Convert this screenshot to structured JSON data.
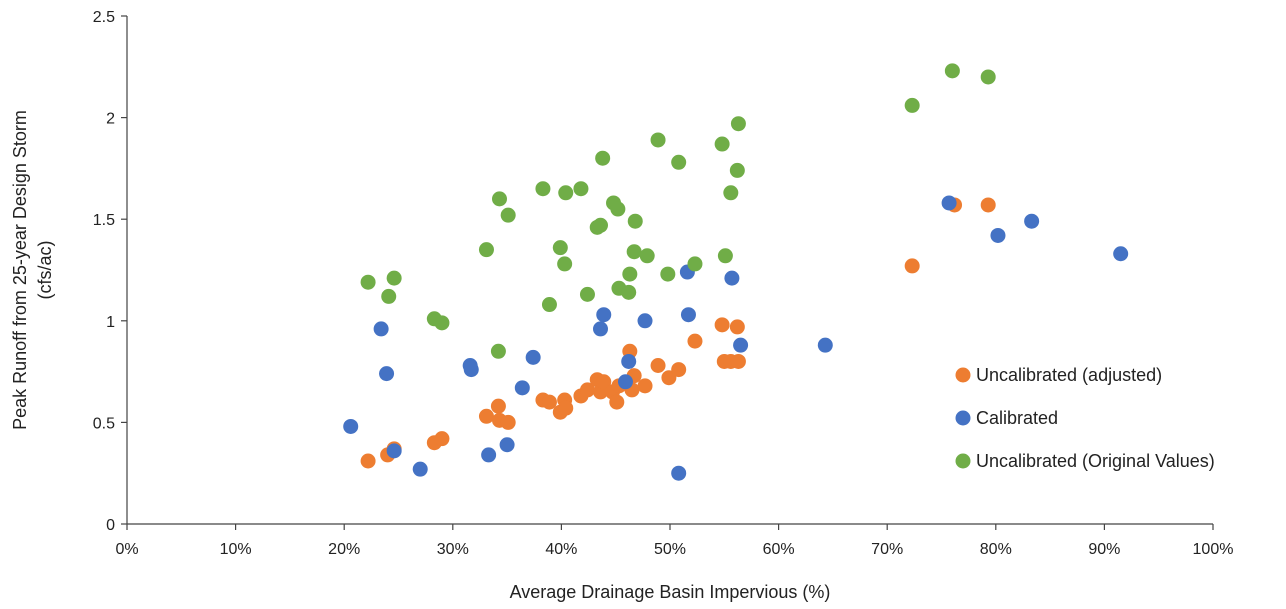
{
  "chart_data": {
    "type": "scatter",
    "xlabel": "Average Drainage Basin Impervious (%)",
    "ylabel_lines": [
      "Peak Runoff from 25-year Design Storm",
      "(cfs/ac)"
    ],
    "xlim": [
      0,
      100
    ],
    "ylim": [
      0,
      2.5
    ],
    "x_ticks": [
      0,
      10,
      20,
      30,
      40,
      50,
      60,
      70,
      80,
      90,
      100
    ],
    "x_tick_labels": [
      "0%",
      "10%",
      "20%",
      "30%",
      "40%",
      "50%",
      "60%",
      "70%",
      "80%",
      "90%",
      "100%"
    ],
    "y_ticks": [
      0,
      0.5,
      1,
      1.5,
      2,
      2.5
    ],
    "y_tick_labels": [
      "0",
      "0.5",
      "1",
      "1.5",
      "2",
      "2.5"
    ],
    "grid": false,
    "legend_position": "right",
    "series": [
      {
        "name": "Uncalibrated (adjusted)",
        "color": "#ED7D31",
        "points": [
          [
            22.2,
            0.31
          ],
          [
            24.0,
            0.34
          ],
          [
            24.6,
            0.37
          ],
          [
            28.3,
            0.4
          ],
          [
            29.0,
            0.42
          ],
          [
            33.1,
            0.53
          ],
          [
            34.2,
            0.58
          ],
          [
            34.3,
            0.51
          ],
          [
            35.1,
            0.5
          ],
          [
            38.3,
            0.61
          ],
          [
            38.9,
            0.6
          ],
          [
            39.9,
            0.55
          ],
          [
            40.3,
            0.61
          ],
          [
            40.4,
            0.57
          ],
          [
            41.8,
            0.63
          ],
          [
            42.4,
            0.66
          ],
          [
            43.3,
            0.71
          ],
          [
            43.6,
            0.65
          ],
          [
            43.9,
            0.7
          ],
          [
            44.7,
            0.65
          ],
          [
            45.1,
            0.6
          ],
          [
            45.3,
            0.68
          ],
          [
            46.3,
            0.85
          ],
          [
            46.5,
            0.66
          ],
          [
            46.7,
            0.73
          ],
          [
            47.7,
            0.68
          ],
          [
            48.9,
            0.78
          ],
          [
            49.9,
            0.72
          ],
          [
            50.8,
            0.76
          ],
          [
            52.3,
            0.9
          ],
          [
            54.8,
            0.98
          ],
          [
            55.0,
            0.8
          ],
          [
            55.6,
            0.8
          ],
          [
            56.2,
            0.97
          ],
          [
            56.3,
            0.8
          ],
          [
            72.3,
            1.27
          ],
          [
            76.2,
            1.57
          ],
          [
            79.3,
            1.57
          ]
        ]
      },
      {
        "name": "Calibrated",
        "color": "#4472C4",
        "points": [
          [
            20.6,
            0.48
          ],
          [
            23.4,
            0.96
          ],
          [
            23.9,
            0.74
          ],
          [
            24.6,
            0.36
          ],
          [
            27.0,
            0.27
          ],
          [
            31.6,
            0.78
          ],
          [
            31.7,
            0.76
          ],
          [
            33.3,
            0.34
          ],
          [
            35.0,
            0.39
          ],
          [
            36.4,
            0.67
          ],
          [
            37.4,
            0.82
          ],
          [
            43.6,
            0.96
          ],
          [
            43.9,
            1.03
          ],
          [
            45.9,
            0.7
          ],
          [
            46.2,
            0.8
          ],
          [
            47.7,
            1.0
          ],
          [
            50.8,
            0.25
          ],
          [
            51.6,
            1.24
          ],
          [
            51.7,
            1.03
          ],
          [
            55.7,
            1.21
          ],
          [
            56.5,
            0.88
          ],
          [
            64.3,
            0.88
          ],
          [
            75.7,
            1.58
          ],
          [
            80.2,
            1.42
          ],
          [
            83.3,
            1.49
          ],
          [
            91.5,
            1.33
          ]
        ]
      },
      {
        "name": "Uncalibrated (Original Values)",
        "color": "#70AD47",
        "points": [
          [
            22.2,
            1.19
          ],
          [
            24.1,
            1.12
          ],
          [
            24.6,
            1.21
          ],
          [
            28.3,
            1.01
          ],
          [
            29.0,
            0.99
          ],
          [
            33.1,
            1.35
          ],
          [
            34.2,
            0.85
          ],
          [
            34.3,
            1.6
          ],
          [
            35.1,
            1.52
          ],
          [
            38.3,
            1.65
          ],
          [
            38.9,
            1.08
          ],
          [
            39.9,
            1.36
          ],
          [
            40.3,
            1.28
          ],
          [
            40.4,
            1.63
          ],
          [
            41.8,
            1.65
          ],
          [
            42.4,
            1.13
          ],
          [
            43.3,
            1.46
          ],
          [
            43.6,
            1.47
          ],
          [
            43.8,
            1.8
          ],
          [
            44.8,
            1.58
          ],
          [
            45.2,
            1.55
          ],
          [
            45.3,
            1.16
          ],
          [
            46.2,
            1.14
          ],
          [
            46.3,
            1.23
          ],
          [
            46.7,
            1.34
          ],
          [
            46.8,
            1.49
          ],
          [
            47.9,
            1.32
          ],
          [
            48.9,
            1.89
          ],
          [
            49.8,
            1.23
          ],
          [
            50.8,
            1.78
          ],
          [
            52.3,
            1.28
          ],
          [
            54.8,
            1.87
          ],
          [
            55.1,
            1.32
          ],
          [
            55.6,
            1.63
          ],
          [
            56.2,
            1.74
          ],
          [
            56.3,
            1.97
          ],
          [
            72.3,
            2.06
          ],
          [
            76.0,
            2.23
          ],
          [
            79.3,
            2.2
          ]
        ]
      }
    ]
  }
}
